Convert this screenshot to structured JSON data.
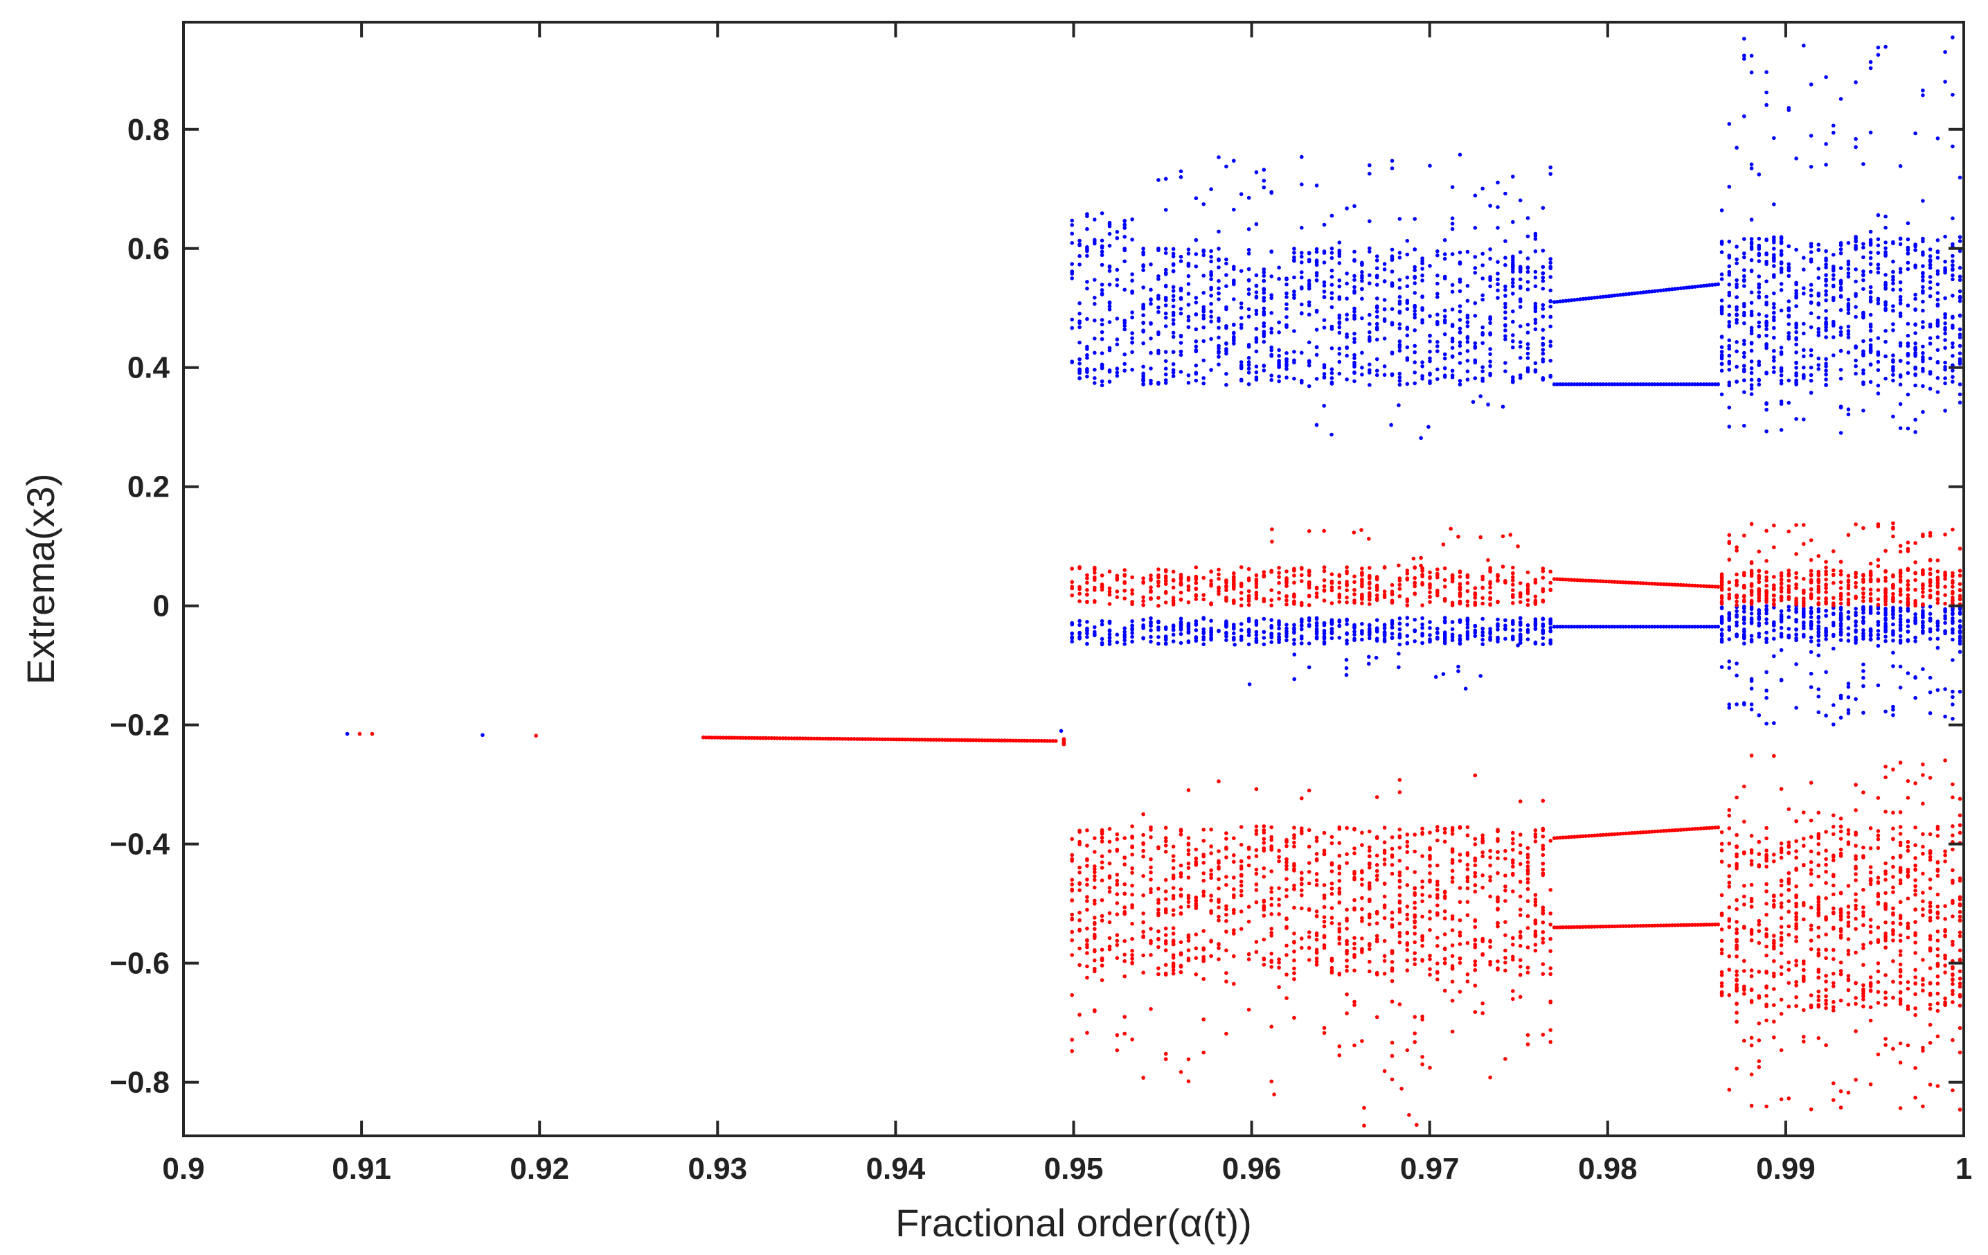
{
  "chart_data": {
    "type": "scatter",
    "title": "",
    "xlabel": "Fractional order(α(t))",
    "ylabel": "Extrema(x3)",
    "xlim": [
      0.9,
      1.0
    ],
    "ylim": [
      -0.89,
      0.98
    ],
    "x_ticks": [
      0.9,
      0.91,
      0.92,
      0.93,
      0.94,
      0.95,
      0.96,
      0.97,
      0.98,
      0.99,
      1
    ],
    "x_tick_labels": [
      "0.9",
      "0.91",
      "0.92",
      "0.93",
      "0.94",
      "0.95",
      "0.96",
      "0.97",
      "0.98",
      "0.99",
      "1"
    ],
    "y_ticks": [
      -0.8,
      -0.6,
      -0.4,
      -0.2,
      0,
      0.2,
      0.4,
      0.6,
      0.8
    ],
    "y_tick_labels": [
      "−0.8",
      "−0.6",
      "−0.4",
      "−0.2",
      "0",
      "0.2",
      "0.4",
      "0.6",
      "0.8"
    ],
    "grid": false,
    "legend": "none",
    "series": [
      {
        "color": "#0000ff",
        "role": "maxima",
        "isolated_points": [
          [
            0.9092,
            -0.215
          ],
          [
            0.9168,
            -0.217
          ],
          [
            0.9493,
            -0.21
          ]
        ],
        "chaotic_regions": [
          {
            "x_range": [
              0.9497,
              0.9535
            ],
            "y_range": [
              0.37,
              0.66
            ],
            "n": 150
          },
          {
            "x_range": [
              0.9497,
              0.9535
            ],
            "y_range": [
              -0.065,
              -0.025
            ],
            "n": 60
          },
          {
            "x_range": [
              0.9537,
              0.977
            ],
            "y_range": [
              0.37,
              0.6
            ],
            "n": 900
          },
          {
            "x_range": [
              0.9537,
              0.977
            ],
            "y_range": [
              0.6,
              0.76
            ],
            "n": 70
          },
          {
            "x_range": [
              0.9537,
              0.977
            ],
            "y_range": [
              -0.065,
              -0.02
            ],
            "n": 450
          },
          {
            "x_range": [
              0.958,
              0.976
            ],
            "y_range": [
              -0.14,
              -0.065
            ],
            "n": 20
          },
          {
            "x_range": [
              0.958,
              0.976
            ],
            "y_range": [
              0.28,
              0.37
            ],
            "n": 12
          },
          {
            "x_range": [
              0.9862,
              1.0
            ],
            "y_range": [
              0.37,
              0.62
            ],
            "n": 700
          },
          {
            "x_range": [
              0.9862,
              1.0
            ],
            "y_range": [
              0.62,
              0.97
            ],
            "n": 60
          },
          {
            "x_range": [
              0.9862,
              1.0
            ],
            "y_range": [
              0.29,
              0.37
            ],
            "n": 40
          },
          {
            "x_range": [
              0.9862,
              1.0
            ],
            "y_range": [
              -0.06,
              0.0
            ],
            "n": 380
          },
          {
            "x_range": [
              0.9862,
              1.0
            ],
            "y_range": [
              -0.2,
              -0.06
            ],
            "n": 90
          }
        ],
        "periodic_branches": [
          {
            "x_range": [
              0.977,
              0.9862
            ],
            "y_start": 0.51,
            "y_end": 0.54
          },
          {
            "x_range": [
              0.977,
              0.9862
            ],
            "y_start": 0.372,
            "y_end": 0.372
          },
          {
            "x_range": [
              0.977,
              0.9862
            ],
            "y_start": -0.035,
            "y_end": -0.035
          }
        ]
      },
      {
        "color": "#ff0000",
        "role": "minima",
        "isolated_points": [
          [
            0.9099,
            -0.215
          ],
          [
            0.9106,
            -0.215
          ],
          [
            0.9198,
            -0.218
          ]
        ],
        "periodic_branches": [
          {
            "x_range": [
              0.9292,
              0.949
            ],
            "y_start": -0.221,
            "y_end": -0.227
          },
          {
            "x_range": [
              0.977,
              0.9862
            ],
            "y_start": 0.045,
            "y_end": 0.032
          },
          {
            "x_range": [
              0.977,
              0.9862
            ],
            "y_start": -0.39,
            "y_end": -0.372
          },
          {
            "x_range": [
              0.977,
              0.9862
            ],
            "y_start": -0.54,
            "y_end": -0.535
          }
        ],
        "chaotic_regions": [
          {
            "x_range": [
              0.9493,
              0.9496
            ],
            "y_range": [
              -0.25,
              -0.22
            ],
            "n": 8
          },
          {
            "x_range": [
              0.9497,
              0.9535
            ],
            "y_range": [
              -0.62,
              -0.37
            ],
            "n": 150
          },
          {
            "x_range": [
              0.9497,
              0.9535
            ],
            "y_range": [
              0.0,
              0.065
            ],
            "n": 60
          },
          {
            "x_range": [
              0.9497,
              0.9535
            ],
            "y_range": [
              -0.75,
              -0.62
            ],
            "n": 15
          },
          {
            "x_range": [
              0.9537,
              0.977
            ],
            "y_range": [
              -0.62,
              -0.37
            ],
            "n": 900
          },
          {
            "x_range": [
              0.9537,
              0.977
            ],
            "y_range": [
              -0.8,
              -0.62
            ],
            "n": 70
          },
          {
            "x_range": [
              0.9537,
              0.977
            ],
            "y_range": [
              -0.35,
              -0.28
            ],
            "n": 12
          },
          {
            "x_range": [
              0.9537,
              0.977
            ],
            "y_range": [
              0.0,
              0.065
            ],
            "n": 450
          },
          {
            "x_range": [
              0.958,
              0.976
            ],
            "y_range": [
              0.065,
              0.14
            ],
            "n": 20
          },
          {
            "x_range": [
              0.956,
              0.972
            ],
            "y_range": [
              -0.88,
              -0.8
            ],
            "n": 6
          },
          {
            "x_range": [
              0.9862,
              1.0
            ],
            "y_range": [
              -0.68,
              -0.37
            ],
            "n": 700
          },
          {
            "x_range": [
              0.9862,
              1.0
            ],
            "y_range": [
              -0.85,
              -0.68
            ],
            "n": 60
          },
          {
            "x_range": [
              0.9862,
              1.0
            ],
            "y_range": [
              -0.37,
              -0.25
            ],
            "n": 40
          },
          {
            "x_range": [
              0.9862,
              1.0
            ],
            "y_range": [
              0.0,
              0.06
            ],
            "n": 380
          },
          {
            "x_range": [
              0.9862,
              1.0
            ],
            "y_range": [
              0.06,
              0.14
            ],
            "n": 60
          }
        ]
      }
    ]
  }
}
